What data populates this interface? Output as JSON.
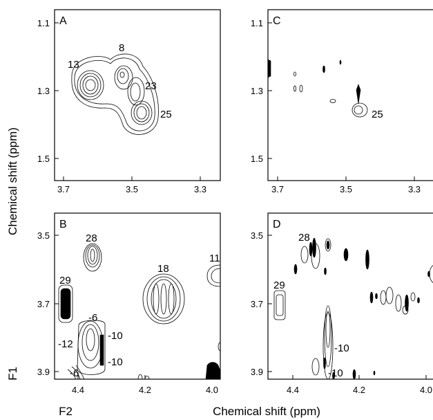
{
  "axes": {
    "y_label": "Chemical shift (ppm)",
    "x_label": "Chemical shift (ppm)",
    "f1_label": "F1",
    "f2_label": "F2"
  },
  "panels": [
    {
      "id": "A",
      "label": "A",
      "x_ticks": [
        "3.7",
        "3.5",
        "3.3"
      ],
      "y_ticks": [
        "1.1",
        "1.3",
        "1.5"
      ],
      "peak_labels": [
        "13",
        "8",
        "23",
        "25"
      ]
    },
    {
      "id": "C",
      "label": "C",
      "x_ticks": [
        "3.7",
        "3.5",
        "3.3"
      ],
      "y_ticks": [
        "1.1",
        "1.3",
        "1.5"
      ],
      "peak_labels": [
        "25"
      ]
    },
    {
      "id": "B",
      "label": "B",
      "x_ticks": [
        "4.4",
        "4.2",
        "4.0"
      ],
      "y_ticks": [
        "3.5",
        "3.7",
        "3.9"
      ],
      "peak_labels": [
        "28",
        "11",
        "18",
        "29",
        "-6",
        "-10",
        "-12",
        "-10",
        "-6"
      ]
    },
    {
      "id": "D",
      "label": "D",
      "x_ticks": [
        "4.4",
        "4.2",
        "4.0"
      ],
      "y_ticks": [
        "3.5",
        "3.7",
        "3.9"
      ],
      "peak_labels": [
        "28",
        "29",
        "-10",
        "-10"
      ]
    }
  ]
}
